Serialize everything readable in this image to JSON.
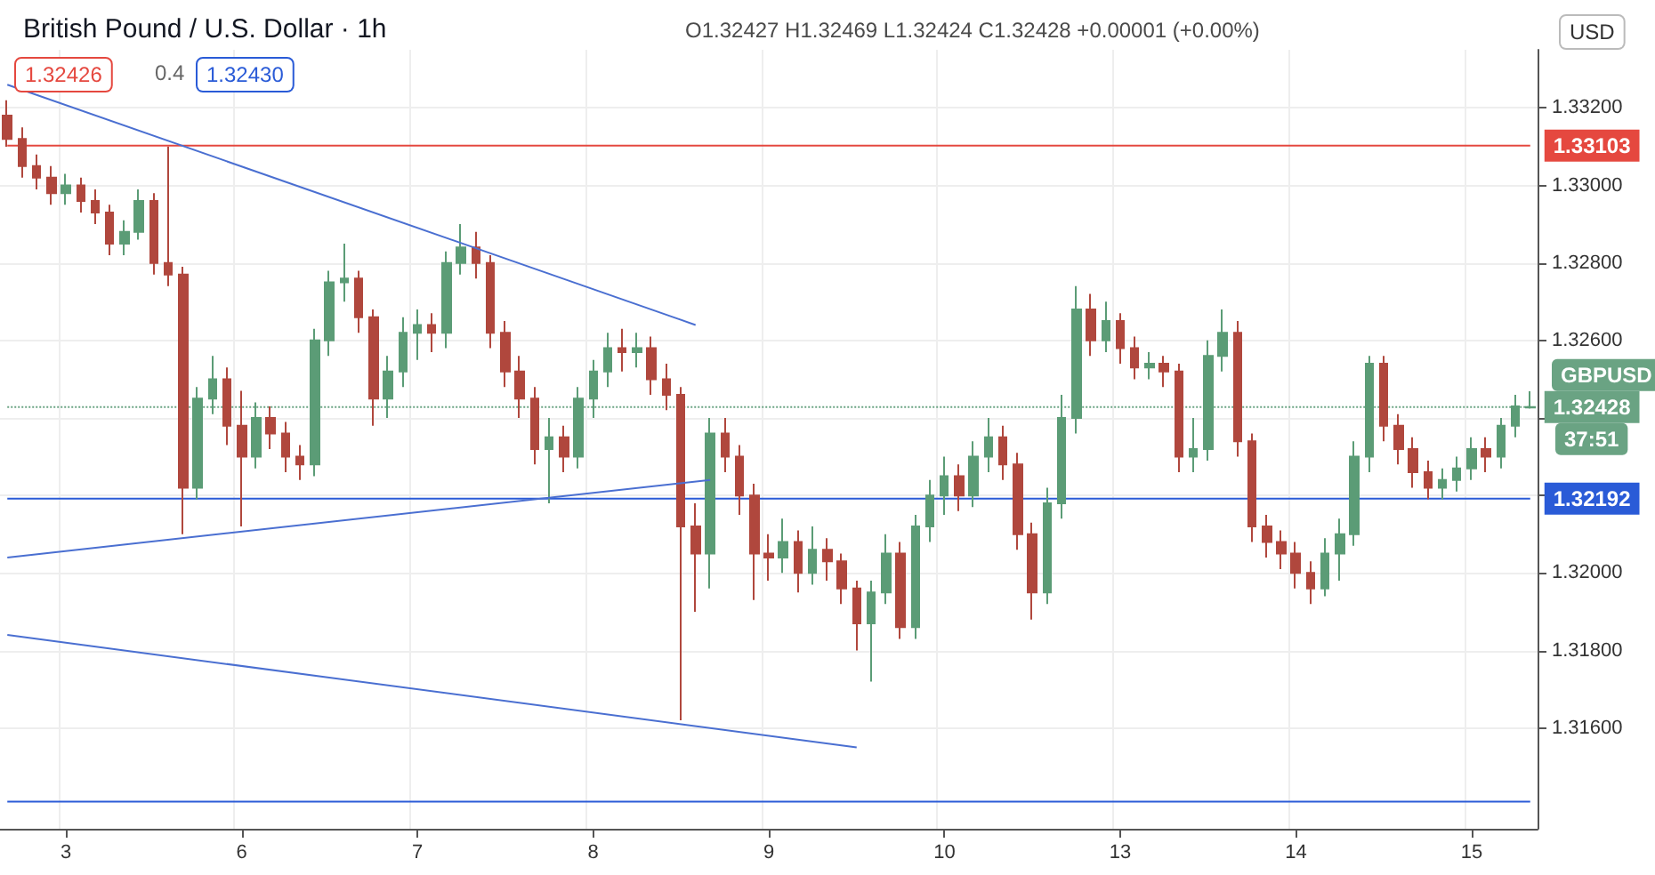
{
  "chart_data": {
    "type": "candlestick",
    "title": "British Pound / U.S. Dollar · 1h",
    "subtitle": "O1.32427 H1.32469 L1.32424 C1.32428 +0.00001 (+0.00%)",
    "categories": [
      null,
      null,
      null,
      null,
      "3",
      null,
      null,
      null,
      null,
      null,
      null,
      null,
      null,
      null,
      null,
      null,
      "6",
      null,
      null,
      null,
      null,
      null,
      null,
      null,
      null,
      null,
      null,
      null,
      "7",
      null,
      null,
      null,
      null,
      null,
      null,
      null,
      null,
      null,
      null,
      null,
      "8",
      null,
      null,
      null,
      null,
      null,
      null,
      null,
      null,
      null,
      null,
      null,
      "9",
      null,
      null,
      null,
      null,
      null,
      null,
      null,
      null,
      null,
      null,
      null,
      "10",
      null,
      null,
      null,
      null,
      null,
      null,
      null,
      null,
      null,
      null,
      null,
      "13",
      null,
      null,
      null,
      null,
      null,
      null,
      null,
      null,
      null,
      null,
      null,
      "14",
      null,
      null,
      null,
      null,
      null,
      null,
      null,
      null,
      null,
      null,
      null,
      "15",
      null,
      null,
      null,
      null
    ],
    "ohlc": [
      [
        1.3318,
        1.3322,
        1.331,
        1.3312
      ],
      [
        1.3312,
        1.3315,
        1.3302,
        1.3305
      ],
      [
        1.3305,
        1.3308,
        1.3299,
        1.3302
      ],
      [
        1.3302,
        1.3305,
        1.3295,
        1.3298
      ],
      [
        1.3298,
        1.3303,
        1.3295,
        1.33
      ],
      [
        1.33,
        1.3302,
        1.3293,
        1.3296
      ],
      [
        1.3296,
        1.3299,
        1.329,
        1.3293
      ],
      [
        1.3293,
        1.3295,
        1.3282,
        1.3285
      ],
      [
        1.3285,
        1.3291,
        1.3282,
        1.3288
      ],
      [
        1.3288,
        1.3299,
        1.3286,
        1.3296
      ],
      [
        1.3296,
        1.3298,
        1.3277,
        1.328
      ],
      [
        1.328,
        1.331,
        1.3274,
        1.3277
      ],
      [
        1.3277,
        1.3279,
        1.321,
        1.3222
      ],
      [
        1.3222,
        1.3248,
        1.3219,
        1.3245
      ],
      [
        1.3245,
        1.3256,
        1.3241,
        1.325
      ],
      [
        1.325,
        1.3253,
        1.3233,
        1.3238
      ],
      [
        1.3238,
        1.3247,
        1.3212,
        1.323
      ],
      [
        1.323,
        1.3244,
        1.3227,
        1.324
      ],
      [
        1.324,
        1.3243,
        1.3232,
        1.3236
      ],
      [
        1.3236,
        1.3239,
        1.3226,
        1.323
      ],
      [
        1.323,
        1.3233,
        1.3224,
        1.3228
      ],
      [
        1.3228,
        1.3263,
        1.3225,
        1.326
      ],
      [
        1.326,
        1.3278,
        1.3256,
        1.3275
      ],
      [
        1.3275,
        1.3285,
        1.327,
        1.3276
      ],
      [
        1.3276,
        1.3278,
        1.3262,
        1.3266
      ],
      [
        1.3266,
        1.3268,
        1.3238,
        1.3245
      ],
      [
        1.3245,
        1.3256,
        1.324,
        1.3252
      ],
      [
        1.3252,
        1.3266,
        1.3248,
        1.3262
      ],
      [
        1.3262,
        1.3268,
        1.3255,
        1.3264
      ],
      [
        1.3264,
        1.3267,
        1.3257,
        1.3262
      ],
      [
        1.3262,
        1.3283,
        1.3258,
        1.328
      ],
      [
        1.328,
        1.329,
        1.3277,
        1.3284
      ],
      [
        1.3284,
        1.3288,
        1.3276,
        1.328
      ],
      [
        1.328,
        1.3282,
        1.3258,
        1.3262
      ],
      [
        1.3262,
        1.3265,
        1.3248,
        1.3252
      ],
      [
        1.3252,
        1.3256,
        1.324,
        1.3245
      ],
      [
        1.3245,
        1.3248,
        1.3228,
        1.3232
      ],
      [
        1.3232,
        1.324,
        1.3218,
        1.3235
      ],
      [
        1.3235,
        1.3238,
        1.3226,
        1.323
      ],
      [
        1.323,
        1.3248,
        1.3227,
        1.3245
      ],
      [
        1.3245,
        1.3255,
        1.324,
        1.3252
      ],
      [
        1.3252,
        1.3262,
        1.3248,
        1.3258
      ],
      [
        1.3258,
        1.3263,
        1.3252,
        1.3257
      ],
      [
        1.3257,
        1.3262,
        1.3253,
        1.3258
      ],
      [
        1.3258,
        1.3261,
        1.3246,
        1.325
      ],
      [
        1.325,
        1.3254,
        1.3242,
        1.3246
      ],
      [
        1.3246,
        1.3248,
        1.3162,
        1.3212
      ],
      [
        1.3212,
        1.3218,
        1.319,
        1.3205
      ],
      [
        1.3205,
        1.324,
        1.3196,
        1.3236
      ],
      [
        1.3236,
        1.324,
        1.3226,
        1.323
      ],
      [
        1.323,
        1.3233,
        1.3215,
        1.322
      ],
      [
        1.322,
        1.3223,
        1.3193,
        1.3205
      ],
      [
        1.3205,
        1.321,
        1.3198,
        1.3204
      ],
      [
        1.3204,
        1.3214,
        1.32,
        1.3208
      ],
      [
        1.3208,
        1.3211,
        1.3195,
        1.32
      ],
      [
        1.32,
        1.3212,
        1.3197,
        1.3206
      ],
      [
        1.3206,
        1.3209,
        1.3198,
        1.3203
      ],
      [
        1.3203,
        1.3205,
        1.3192,
        1.3196
      ],
      [
        1.3196,
        1.3198,
        1.318,
        1.3187
      ],
      [
        1.3187,
        1.3198,
        1.3172,
        1.3195
      ],
      [
        1.3195,
        1.321,
        1.3192,
        1.3205
      ],
      [
        1.3205,
        1.3208,
        1.3183,
        1.3186
      ],
      [
        1.3186,
        1.3215,
        1.3183,
        1.3212
      ],
      [
        1.3212,
        1.3224,
        1.3208,
        1.322
      ],
      [
        1.322,
        1.323,
        1.3215,
        1.3225
      ],
      [
        1.3225,
        1.3228,
        1.3216,
        1.322
      ],
      [
        1.322,
        1.3234,
        1.3217,
        1.323
      ],
      [
        1.323,
        1.324,
        1.3226,
        1.3235
      ],
      [
        1.3235,
        1.3238,
        1.3224,
        1.3228
      ],
      [
        1.3228,
        1.3231,
        1.3206,
        1.321
      ],
      [
        1.321,
        1.3213,
        1.3188,
        1.3195
      ],
      [
        1.3195,
        1.3222,
        1.3192,
        1.3218
      ],
      [
        1.3218,
        1.3246,
        1.3214,
        1.324
      ],
      [
        1.324,
        1.3274,
        1.3236,
        1.3268
      ],
      [
        1.3268,
        1.3272,
        1.3256,
        1.326
      ],
      [
        1.326,
        1.327,
        1.3257,
        1.3265
      ],
      [
        1.3265,
        1.3267,
        1.3254,
        1.3258
      ],
      [
        1.3258,
        1.3261,
        1.325,
        1.3253
      ],
      [
        1.3253,
        1.3257,
        1.325,
        1.3254
      ],
      [
        1.3254,
        1.3256,
        1.3248,
        1.3252
      ],
      [
        1.3252,
        1.3254,
        1.3226,
        1.323
      ],
      [
        1.323,
        1.324,
        1.3226,
        1.3232
      ],
      [
        1.3232,
        1.326,
        1.3229,
        1.3256
      ],
      [
        1.3256,
        1.3268,
        1.3252,
        1.3262
      ],
      [
        1.3262,
        1.3265,
        1.323,
        1.3234
      ],
      [
        1.3234,
        1.3236,
        1.3208,
        1.3212
      ],
      [
        1.3212,
        1.3215,
        1.3204,
        1.3208
      ],
      [
        1.3208,
        1.3211,
        1.3201,
        1.3205
      ],
      [
        1.3205,
        1.3208,
        1.3196,
        1.32
      ],
      [
        1.32,
        1.3203,
        1.3192,
        1.3196
      ],
      [
        1.3196,
        1.3209,
        1.3194,
        1.3205
      ],
      [
        1.3205,
        1.3214,
        1.3198,
        1.321
      ],
      [
        1.321,
        1.3234,
        1.3207,
        1.323
      ],
      [
        1.323,
        1.3256,
        1.3226,
        1.3254
      ],
      [
        1.3254,
        1.3256,
        1.3234,
        1.3238
      ],
      [
        1.3238,
        1.3241,
        1.3228,
        1.3232
      ],
      [
        1.3232,
        1.3235,
        1.3222,
        1.3226
      ],
      [
        1.3226,
        1.3229,
        1.3219,
        1.3222
      ],
      [
        1.3222,
        1.3227,
        1.3219,
        1.3224
      ],
      [
        1.3224,
        1.323,
        1.3221,
        1.3227
      ],
      [
        1.3227,
        1.3235,
        1.3224,
        1.3232
      ],
      [
        1.3232,
        1.3235,
        1.3226,
        1.323
      ],
      [
        1.323,
        1.324,
        1.3227,
        1.3238
      ],
      [
        1.3238,
        1.3246,
        1.3235,
        1.3243
      ],
      [
        1.32427,
        1.32469,
        1.32424,
        1.32428
      ]
    ],
    "colors": [
      "#b0473d",
      "#b0473d",
      "#b0473d",
      "#b0473d",
      "#5b9c76",
      "#b0473d",
      "#b0473d",
      "#b0473d",
      "#5b9c76",
      "#5b9c76",
      "#b0473d",
      "#b0473d",
      "#b0473d",
      "#5b9c76",
      "#5b9c76",
      "#b0473d",
      "#b0473d",
      "#5b9c76",
      "#b0473d",
      "#b0473d",
      "#b0473d",
      "#5b9c76",
      "#5b9c76",
      "#5b9c76",
      "#b0473d",
      "#b0473d",
      "#5b9c76",
      "#5b9c76",
      "#5b9c76",
      "#b0473d",
      "#5b9c76",
      "#5b9c76",
      "#b0473d",
      "#b0473d",
      "#b0473d",
      "#b0473d",
      "#b0473d",
      "#5b9c76",
      "#b0473d",
      "#5b9c76",
      "#5b9c76",
      "#5b9c76",
      "#b0473d",
      "#5b9c76",
      "#b0473d",
      "#b0473d",
      "#b0473d",
      "#b0473d",
      "#5b9c76",
      "#b0473d",
      "#b0473d",
      "#b0473d",
      "#b0473d",
      "#5b9c76",
      "#b0473d",
      "#5b9c76",
      "#b0473d",
      "#b0473d",
      "#b0473d",
      "#5b9c76",
      "#5b9c76",
      "#b0473d",
      "#5b9c76",
      "#5b9c76",
      "#5b9c76",
      "#b0473d",
      "#5b9c76",
      "#5b9c76",
      "#b0473d",
      "#b0473d",
      "#b0473d",
      "#5b9c76",
      "#5b9c76",
      "#5b9c76",
      "#b0473d",
      "#5b9c76",
      "#b0473d",
      "#b0473d",
      "#5b9c76",
      "#b0473d",
      "#b0473d",
      "#5b9c76",
      "#5b9c76",
      "#5b9c76",
      "#b0473d",
      "#b0473d",
      "#b0473d",
      "#b0473d",
      "#b0473d",
      "#b0473d",
      "#5b9c76",
      "#5b9c76",
      "#5b9c76",
      "#5b9c76",
      "#b0473d",
      "#b0473d",
      "#b0473d",
      "#b0473d",
      "#5b9c76",
      "#5b9c76",
      "#5b9c76",
      "#b0473d",
      "#5b9c76",
      "#5b9c76",
      "#5b9c76"
    ],
    "series": [
      {
        "type": "line",
        "color": "#4a6fd1",
        "values": [
          1.3326,
          null,
          null,
          null,
          null,
          null,
          null,
          null,
          null,
          null,
          null,
          null,
          null,
          null,
          null,
          null,
          null,
          null,
          null,
          null,
          null,
          null,
          null,
          null,
          null,
          null,
          null,
          null,
          null,
          null,
          null,
          null,
          null,
          null,
          null,
          null,
          null,
          null,
          null,
          null,
          null,
          null,
          null,
          null,
          null,
          null,
          null,
          1.3264,
          null,
          null,
          null,
          null,
          null,
          null,
          null,
          null,
          null,
          null,
          null,
          null,
          null,
          null,
          null,
          null,
          null,
          null,
          null,
          null,
          null,
          null,
          null,
          null,
          null,
          null,
          null,
          null,
          null,
          null,
          null,
          null,
          null,
          null,
          null,
          null,
          null,
          null,
          null,
          null,
          null,
          null,
          null,
          null,
          null,
          null,
          null,
          null,
          null,
          null,
          null,
          null,
          null,
          null,
          null,
          null,
          null
        ]
      },
      {
        "type": "line",
        "color": "#4a6fd1",
        "values": [
          1.3204,
          null,
          null,
          null,
          null,
          null,
          null,
          null,
          null,
          null,
          null,
          null,
          null,
          null,
          null,
          null,
          null,
          null,
          null,
          null,
          null,
          null,
          null,
          null,
          null,
          null,
          null,
          null,
          null,
          null,
          null,
          null,
          null,
          null,
          null,
          null,
          null,
          null,
          null,
          null,
          null,
          null,
          null,
          null,
          null,
          null,
          null,
          null,
          1.3224,
          null,
          null,
          null,
          null,
          null,
          null,
          null,
          null,
          null,
          null,
          null,
          null,
          null,
          null,
          null,
          null,
          null,
          null,
          null,
          null,
          null,
          null,
          null,
          null,
          null,
          null,
          null,
          null,
          null,
          null,
          null,
          null,
          null,
          null,
          null,
          null,
          null,
          null,
          null,
          null,
          null,
          null,
          null,
          null,
          null,
          null,
          null,
          null,
          null,
          null,
          null,
          null,
          null,
          null,
          null,
          null
        ]
      },
      {
        "type": "line",
        "color": "#4a6fd1",
        "values": [
          1.3184,
          null,
          null,
          null,
          null,
          null,
          null,
          null,
          null,
          null,
          null,
          null,
          null,
          null,
          null,
          null,
          null,
          null,
          null,
          null,
          null,
          null,
          null,
          null,
          null,
          null,
          null,
          null,
          null,
          null,
          null,
          null,
          null,
          null,
          null,
          null,
          null,
          null,
          null,
          null,
          null,
          null,
          null,
          null,
          null,
          null,
          null,
          null,
          null,
          null,
          null,
          null,
          null,
          null,
          null,
          null,
          null,
          null,
          1.3155,
          null,
          null,
          null,
          null,
          null,
          null,
          null,
          null,
          null,
          null,
          null,
          null,
          null,
          null,
          null,
          null,
          null,
          null,
          null,
          null,
          null,
          null,
          null,
          null,
          null,
          null,
          null,
          null,
          null,
          null,
          null,
          null,
          null,
          null,
          null,
          null,
          null,
          null,
          null,
          null,
          null,
          null,
          null,
          null,
          null,
          null
        ]
      }
    ],
    "ylim": [
      1.3134,
      1.3335
    ],
    "yticks": [
      {
        "value": 1.316,
        "label": "1.31600"
      },
      {
        "value": 1.318,
        "label": "1.31800"
      },
      {
        "value": 1.32,
        "label": "1.32000"
      },
      {
        "value": 1.322,
        "label": null
      },
      {
        "value": 1.324,
        "label": null
      },
      {
        "value": 1.326,
        "label": "1.32600"
      },
      {
        "value": 1.328,
        "label": "1.32800"
      },
      {
        "value": 1.33,
        "label": "1.33000"
      },
      {
        "value": 1.332,
        "label": "1.33200"
      }
    ],
    "ref_lines": [
      {
        "axis": "y",
        "value": 1.33103,
        "label": "1.33103",
        "color": "#e5483f",
        "line_style": "solid"
      },
      {
        "axis": "y",
        "value": 1.32192,
        "label": "1.32192",
        "color": "#2a5bd7",
        "line_style": "solid"
      },
      {
        "axis": "y",
        "value": 1.3141,
        "label": null,
        "color": "#2a5bd7",
        "line_style": "solid"
      },
      {
        "axis": "y",
        "value": 1.32428,
        "label": "1.32428",
        "color": "#6aa383",
        "line_style": "dotted"
      }
    ],
    "annotations": [
      "1.32426",
      "0.4",
      "1.32430",
      "USD",
      "GBPUSD",
      "37:51"
    ],
    "grid": true
  }
}
